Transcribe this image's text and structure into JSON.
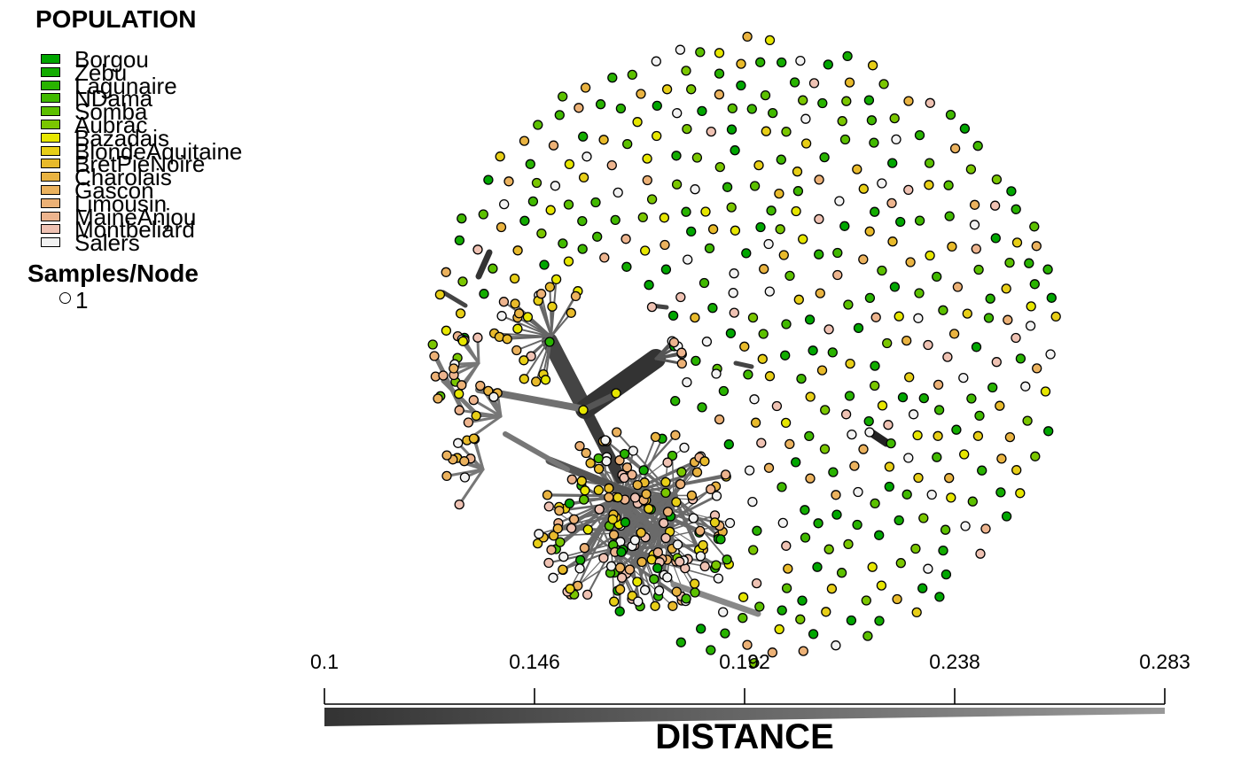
{
  "legend": {
    "title": "POPULATION",
    "populations": [
      {
        "name": "Borgou",
        "color": "#00A600"
      },
      {
        "name": "Zebu",
        "color": "#13AC00"
      },
      {
        "name": "Lagunaire",
        "color": "#29B300"
      },
      {
        "name": "NDama",
        "color": "#41B900"
      },
      {
        "name": "Somba",
        "color": "#5CC000"
      },
      {
        "name": "Aubrac",
        "color": "#7AC600"
      },
      {
        "name": "Bazadais",
        "color": "#E6E600"
      },
      {
        "name": "BlondeAquitaine",
        "color": "#E7CE17"
      },
      {
        "name": "BretPieNoire",
        "color": "#E8BA2B"
      },
      {
        "name": "Charolais",
        "color": "#E9B341"
      },
      {
        "name": "Gascon",
        "color": "#EBB25E"
      },
      {
        "name": "Limousin",
        "color": "#ECB176"
      },
      {
        "name": "MaineAnjou",
        "color": "#EDB48E"
      },
      {
        "name": "Montbeliard",
        "color": "#EFC2B3"
      },
      {
        "name": "Salers",
        "color": "#F2F2F2"
      }
    ],
    "samples_title": "Samples/Node",
    "samples_value": "1"
  },
  "scale": {
    "title": "DISTANCE",
    "ticks": [
      "0.1",
      "0.146",
      "0.192",
      "0.238",
      "0.283"
    ],
    "min": 0.1,
    "max": 0.283,
    "gradient_start": "#333333",
    "gradient_end": "#999999"
  },
  "network": {
    "node_count": 700,
    "edge_color": "#555555"
  }
}
